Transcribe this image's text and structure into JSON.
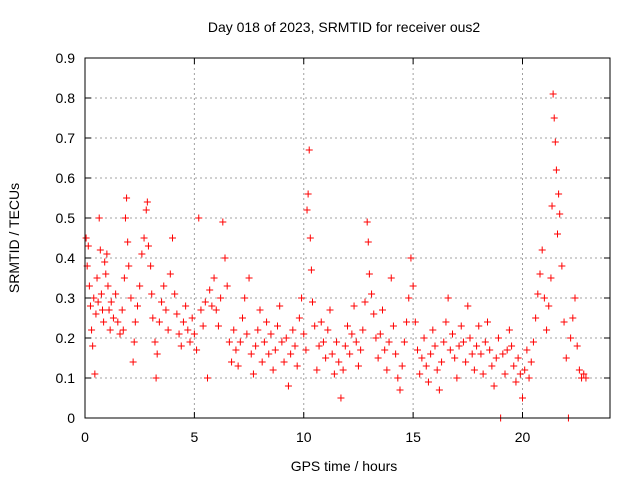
{
  "chart_data": {
    "type": "scatter",
    "title": "Day 018 of 2023, SRMTID for receiver ous2",
    "xlabel": "GPS time / hours",
    "ylabel": "SRMTID / TECUs",
    "xlim": [
      0,
      24
    ],
    "ylim": [
      0,
      0.9
    ],
    "xticks": [
      0,
      5,
      10,
      15,
      20
    ],
    "xtick_labels": [
      "0",
      "5",
      "10",
      "15",
      "20"
    ],
    "yticks": [
      0,
      0.1,
      0.2,
      0.3,
      0.4,
      0.5,
      0.6,
      0.7,
      0.8,
      0.9
    ],
    "ytick_labels": [
      "0",
      "0.1",
      "0.2",
      "0.3",
      "0.4",
      "0.5",
      "0.6",
      "0.7",
      "0.8",
      "0.9"
    ],
    "grid": true,
    "marker": "+",
    "color": "#ff0000",
    "series": [
      {
        "name": "SRMTID",
        "points": [
          [
            0.05,
            0.45
          ],
          [
            0.1,
            0.38
          ],
          [
            0.15,
            0.43
          ],
          [
            0.2,
            0.33
          ],
          [
            0.25,
            0.28
          ],
          [
            0.3,
            0.22
          ],
          [
            0.35,
            0.18
          ],
          [
            0.4,
            0.3
          ],
          [
            0.45,
            0.11
          ],
          [
            0.5,
            0.26
          ],
          [
            0.55,
            0.35
          ],
          [
            0.6,
            0.29
          ],
          [
            0.65,
            0.5
          ],
          [
            0.7,
            0.42
          ],
          [
            0.75,
            0.31
          ],
          [
            0.8,
            0.27
          ],
          [
            0.85,
            0.24
          ],
          [
            0.9,
            0.39
          ],
          [
            0.95,
            0.36
          ],
          [
            1.0,
            0.41
          ],
          [
            1.05,
            0.33
          ],
          [
            1.1,
            0.27
          ],
          [
            1.15,
            0.22
          ],
          [
            1.2,
            0.29
          ],
          [
            1.3,
            0.25
          ],
          [
            1.4,
            0.31
          ],
          [
            1.5,
            0.24
          ],
          [
            1.6,
            0.21
          ],
          [
            1.7,
            0.27
          ],
          [
            1.75,
            0.22
          ],
          [
            1.8,
            0.35
          ],
          [
            1.85,
            0.5
          ],
          [
            1.9,
            0.55
          ],
          [
            1.95,
            0.44
          ],
          [
            2.0,
            0.38
          ],
          [
            2.1,
            0.3
          ],
          [
            2.2,
            0.14
          ],
          [
            2.25,
            0.19
          ],
          [
            2.3,
            0.24
          ],
          [
            2.4,
            0.28
          ],
          [
            2.5,
            0.33
          ],
          [
            2.6,
            0.41
          ],
          [
            2.7,
            0.45
          ],
          [
            2.8,
            0.52
          ],
          [
            2.85,
            0.54
          ],
          [
            2.9,
            0.43
          ],
          [
            3.0,
            0.38
          ],
          [
            3.05,
            0.31
          ],
          [
            3.1,
            0.25
          ],
          [
            3.2,
            0.19
          ],
          [
            3.25,
            0.1
          ],
          [
            3.3,
            0.16
          ],
          [
            3.4,
            0.24
          ],
          [
            3.5,
            0.29
          ],
          [
            3.6,
            0.33
          ],
          [
            3.7,
            0.27
          ],
          [
            3.8,
            0.22
          ],
          [
            3.9,
            0.36
          ],
          [
            4.0,
            0.45
          ],
          [
            4.1,
            0.31
          ],
          [
            4.2,
            0.26
          ],
          [
            4.3,
            0.21
          ],
          [
            4.4,
            0.18
          ],
          [
            4.5,
            0.24
          ],
          [
            4.6,
            0.28
          ],
          [
            4.7,
            0.22
          ],
          [
            4.8,
            0.19
          ],
          [
            4.9,
            0.25
          ],
          [
            5.0,
            0.21
          ],
          [
            5.1,
            0.17
          ],
          [
            5.2,
            0.5
          ],
          [
            5.3,
            0.27
          ],
          [
            5.4,
            0.23
          ],
          [
            5.5,
            0.29
          ],
          [
            5.6,
            0.1
          ],
          [
            5.7,
            0.32
          ],
          [
            5.8,
            0.28
          ],
          [
            5.9,
            0.35
          ],
          [
            6.0,
            0.27
          ],
          [
            6.1,
            0.23
          ],
          [
            6.2,
            0.3
          ],
          [
            6.3,
            0.49
          ],
          [
            6.4,
            0.4
          ],
          [
            6.5,
            0.33
          ],
          [
            6.6,
            0.19
          ],
          [
            6.7,
            0.14
          ],
          [
            6.8,
            0.22
          ],
          [
            6.9,
            0.17
          ],
          [
            7.0,
            0.13
          ],
          [
            7.1,
            0.19
          ],
          [
            7.2,
            0.25
          ],
          [
            7.3,
            0.3
          ],
          [
            7.4,
            0.21
          ],
          [
            7.5,
            0.35
          ],
          [
            7.6,
            0.16
          ],
          [
            7.7,
            0.11
          ],
          [
            7.8,
            0.18
          ],
          [
            7.9,
            0.22
          ],
          [
            8.0,
            0.27
          ],
          [
            8.1,
            0.14
          ],
          [
            8.2,
            0.19
          ],
          [
            8.3,
            0.24
          ],
          [
            8.4,
            0.16
          ],
          [
            8.5,
            0.21
          ],
          [
            8.6,
            0.12
          ],
          [
            8.7,
            0.17
          ],
          [
            8.8,
            0.23
          ],
          [
            8.9,
            0.28
          ],
          [
            9.0,
            0.19
          ],
          [
            9.1,
            0.14
          ],
          [
            9.2,
            0.2
          ],
          [
            9.3,
            0.08
          ],
          [
            9.4,
            0.16
          ],
          [
            9.5,
            0.22
          ],
          [
            9.6,
            0.18
          ],
          [
            9.7,
            0.13
          ],
          [
            9.8,
            0.25
          ],
          [
            9.9,
            0.3
          ],
          [
            10.0,
            0.21
          ],
          [
            10.1,
            0.17
          ],
          [
            10.15,
            0.52
          ],
          [
            10.2,
            0.56
          ],
          [
            10.25,
            0.67
          ],
          [
            10.3,
            0.45
          ],
          [
            10.35,
            0.37
          ],
          [
            10.4,
            0.29
          ],
          [
            10.5,
            0.23
          ],
          [
            10.6,
            0.12
          ],
          [
            10.7,
            0.18
          ],
          [
            10.8,
            0.24
          ],
          [
            10.9,
            0.19
          ],
          [
            11.0,
            0.15
          ],
          [
            11.1,
            0.22
          ],
          [
            11.2,
            0.27
          ],
          [
            11.3,
            0.16
          ],
          [
            11.4,
            0.11
          ],
          [
            11.5,
            0.19
          ],
          [
            11.6,
            0.14
          ],
          [
            11.7,
            0.05
          ],
          [
            11.8,
            0.12
          ],
          [
            11.9,
            0.18
          ],
          [
            12.0,
            0.23
          ],
          [
            12.1,
            0.16
          ],
          [
            12.2,
            0.21
          ],
          [
            12.3,
            0.28
          ],
          [
            12.4,
            0.19
          ],
          [
            12.5,
            0.13
          ],
          [
            12.6,
            0.17
          ],
          [
            12.7,
            0.22
          ],
          [
            12.8,
            0.29
          ],
          [
            12.9,
            0.49
          ],
          [
            12.95,
            0.44
          ],
          [
            13.0,
            0.36
          ],
          [
            13.1,
            0.31
          ],
          [
            13.2,
            0.26
          ],
          [
            13.3,
            0.2
          ],
          [
            13.4,
            0.15
          ],
          [
            13.5,
            0.21
          ],
          [
            13.6,
            0.27
          ],
          [
            13.7,
            0.17
          ],
          [
            13.8,
            0.12
          ],
          [
            13.9,
            0.19
          ],
          [
            14.0,
            0.35
          ],
          [
            14.1,
            0.23
          ],
          [
            14.2,
            0.16
          ],
          [
            14.3,
            0.1
          ],
          [
            14.4,
            0.07
          ],
          [
            14.5,
            0.13
          ],
          [
            14.6,
            0.19
          ],
          [
            14.7,
            0.24
          ],
          [
            14.8,
            0.3
          ],
          [
            14.9,
            0.4
          ],
          [
            15.0,
            0.33
          ],
          [
            15.1,
            0.24
          ],
          [
            15.2,
            0.17
          ],
          [
            15.3,
            0.11
          ],
          [
            15.4,
            0.15
          ],
          [
            15.5,
            0.2
          ],
          [
            15.6,
            0.13
          ],
          [
            15.7,
            0.09
          ],
          [
            15.8,
            0.16
          ],
          [
            15.9,
            0.22
          ],
          [
            16.0,
            0.18
          ],
          [
            16.1,
            0.12
          ],
          [
            16.2,
            0.07
          ],
          [
            16.3,
            0.14
          ],
          [
            16.4,
            0.19
          ],
          [
            16.5,
            0.24
          ],
          [
            16.6,
            0.3
          ],
          [
            16.7,
            0.17
          ],
          [
            16.8,
            0.21
          ],
          [
            16.9,
            0.15
          ],
          [
            17.0,
            0.1
          ],
          [
            17.1,
            0.18
          ],
          [
            17.2,
            0.23
          ],
          [
            17.3,
            0.19
          ],
          [
            17.4,
            0.14
          ],
          [
            17.5,
            0.28
          ],
          [
            17.6,
            0.2
          ],
          [
            17.7,
            0.16
          ],
          [
            17.8,
            0.12
          ],
          [
            17.9,
            0.18
          ],
          [
            18.0,
            0.23
          ],
          [
            18.1,
            0.16
          ],
          [
            18.2,
            0.11
          ],
          [
            18.3,
            0.19
          ],
          [
            18.4,
            0.24
          ],
          [
            18.5,
            0.17
          ],
          [
            18.6,
            0.13
          ],
          [
            18.7,
            0.08
          ],
          [
            18.8,
            0.15
          ],
          [
            18.9,
            0.2
          ],
          [
            19.0,
            0.0
          ],
          [
            19.1,
            0.16
          ],
          [
            19.2,
            0.11
          ],
          [
            19.3,
            0.17
          ],
          [
            19.4,
            0.22
          ],
          [
            19.5,
            0.18
          ],
          [
            19.6,
            0.13
          ],
          [
            19.7,
            0.09
          ],
          [
            19.8,
            0.15
          ],
          [
            19.9,
            0.11
          ],
          [
            20.0,
            0.05
          ],
          [
            20.1,
            0.12
          ],
          [
            20.2,
            0.17
          ],
          [
            20.3,
            0.1
          ],
          [
            20.4,
            0.14
          ],
          [
            20.5,
            0.19
          ],
          [
            20.6,
            0.25
          ],
          [
            20.7,
            0.31
          ],
          [
            20.8,
            0.36
          ],
          [
            20.9,
            0.42
          ],
          [
            21.0,
            0.3
          ],
          [
            21.1,
            0.22
          ],
          [
            21.2,
            0.28
          ],
          [
            21.3,
            0.35
          ],
          [
            21.35,
            0.53
          ],
          [
            21.4,
            0.81
          ],
          [
            21.45,
            0.75
          ],
          [
            21.5,
            0.69
          ],
          [
            21.55,
            0.62
          ],
          [
            21.6,
            0.46
          ],
          [
            21.65,
            0.56
          ],
          [
            21.7,
            0.51
          ],
          [
            21.8,
            0.38
          ],
          [
            21.9,
            0.24
          ],
          [
            22.0,
            0.15
          ],
          [
            22.1,
            0.0
          ],
          [
            22.2,
            0.2
          ],
          [
            22.3,
            0.25
          ],
          [
            22.4,
            0.3
          ],
          [
            22.5,
            0.18
          ],
          [
            22.6,
            0.12
          ],
          [
            22.7,
            0.1
          ],
          [
            22.8,
            0.11
          ],
          [
            22.9,
            0.1
          ]
        ]
      }
    ]
  }
}
